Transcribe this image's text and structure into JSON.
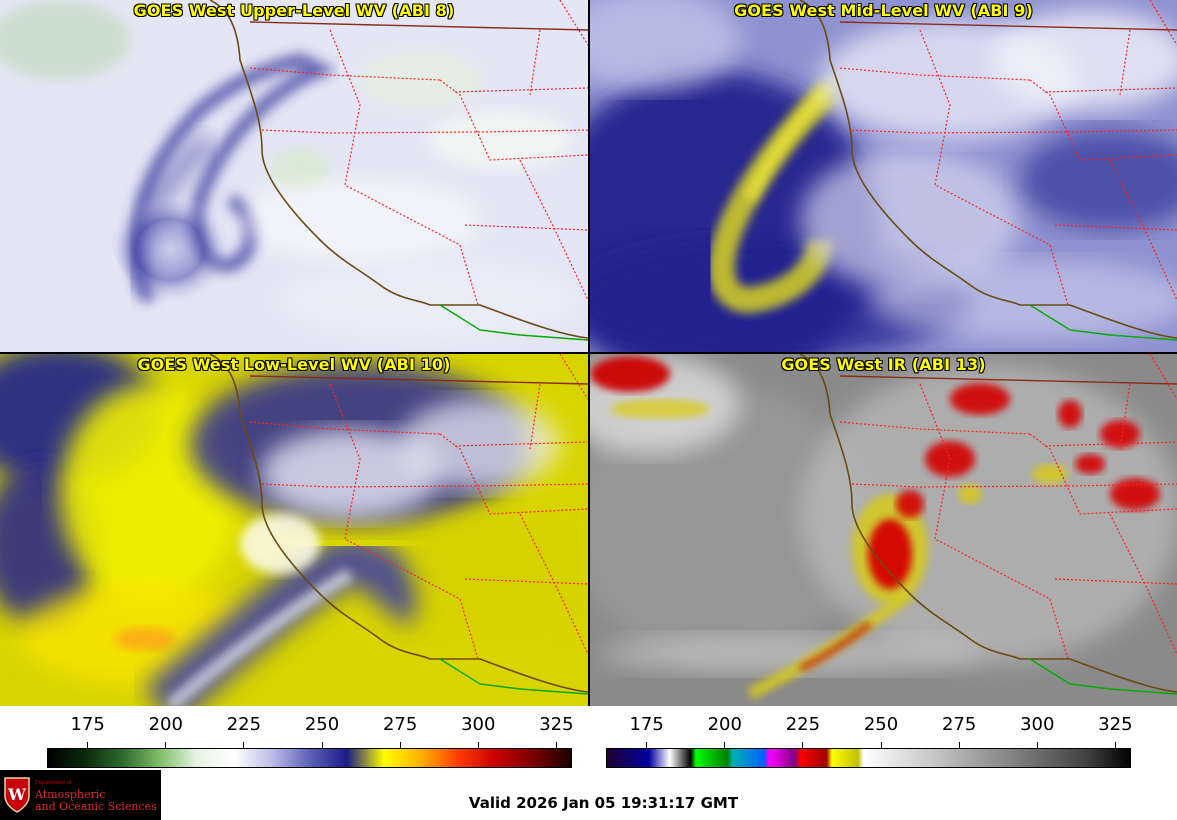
{
  "panels": [
    {
      "title": "GOES West Upper-Level WV (ABI 8)",
      "product": "upper-wv"
    },
    {
      "title": "GOES West Mid-Level WV (ABI 9)",
      "product": "mid-wv"
    },
    {
      "title": "GOES West Low-Level WV (ABI 10)",
      "product": "low-wv"
    },
    {
      "title": "GOES West IR (ABI 13)",
      "product": "ir"
    }
  ],
  "colorbars": [
    {
      "name": "water-vapor",
      "ticks": [
        "175",
        "200",
        "225",
        "250",
        "275",
        "300",
        "325"
      ],
      "range": [
        162,
        330
      ],
      "colors": [
        "#000000",
        "#0a2a0a",
        "#2e6a2e",
        "#7fbf6a",
        "#e8f3e4",
        "#ffffff",
        "#b9bde6",
        "#5e62b8",
        "#1a1b86",
        "#ffff00",
        "#ffb000",
        "#ff3a00",
        "#c80000",
        "#7a0000",
        "#1a0000"
      ]
    },
    {
      "name": "infrared",
      "ticks": [
        "175",
        "200",
        "225",
        "250",
        "275",
        "300",
        "325"
      ],
      "range": [
        162,
        330
      ],
      "colors": [
        "#200030",
        "#0000a0",
        "#ffffff",
        "#000000",
        "#00ff00",
        "#008000",
        "#00b0b0",
        "#0060ff",
        "#ff00ff",
        "#800080",
        "#ff0000",
        "#a00000",
        "#ffff00",
        "#c0c000",
        "#ffffff",
        "#c8c8c8",
        "#808080",
        "#404040",
        "#000000"
      ]
    }
  ],
  "footer": {
    "valid_text": "Valid 2026 Jan 05 19:31:17 GMT",
    "logo": {
      "small_text": "Department of",
      "line1": "Atmospheric",
      "line2": "and Oceanic Sciences"
    }
  },
  "colors": {
    "title_yellow": "#ffff00",
    "coastline": "#6b4a10",
    "state_border": "#ff2020",
    "mexico_border": "#00aa00"
  }
}
